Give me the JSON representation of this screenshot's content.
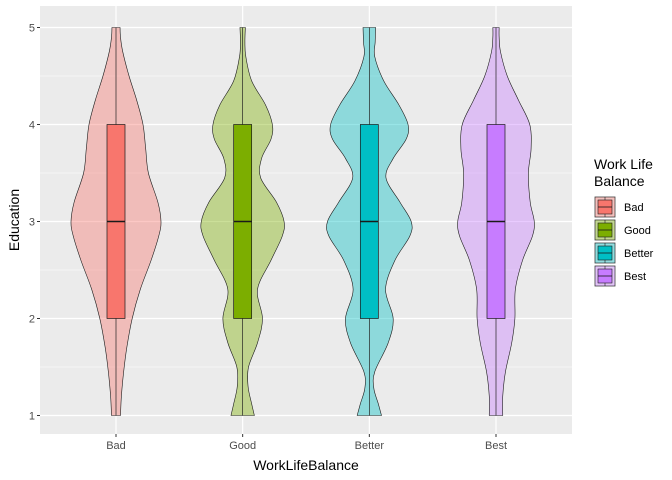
{
  "chart_data": {
    "type": "violin",
    "title": "",
    "xlabel": "WorkLifeBalance",
    "ylabel": "Education",
    "ylim": [
      1,
      5
    ],
    "yticks": [
      "1",
      "2",
      "3",
      "4",
      "5"
    ],
    "grid": true,
    "legend_position": "right",
    "legend_title": [
      "Work Life",
      "Balance"
    ],
    "categories": [
      "Bad",
      "Good",
      "Better",
      "Best"
    ],
    "series": [
      {
        "name": "Bad",
        "color": "#F8766D",
        "box": {
          "min": 1,
          "q1": 2,
          "median": 3,
          "q3": 4,
          "max": 5
        },
        "density_width": [
          [
            1.0,
            0.1
          ],
          [
            1.2,
            0.12
          ],
          [
            1.45,
            0.17
          ],
          [
            1.7,
            0.24
          ],
          [
            2.0,
            0.36
          ],
          [
            2.3,
            0.54
          ],
          [
            2.6,
            0.78
          ],
          [
            2.85,
            0.95
          ],
          [
            3.0,
            1.0
          ],
          [
            3.2,
            0.93
          ],
          [
            3.5,
            0.72
          ],
          [
            3.75,
            0.66
          ],
          [
            4.0,
            0.6
          ],
          [
            4.25,
            0.46
          ],
          [
            4.5,
            0.29
          ],
          [
            4.75,
            0.15
          ],
          [
            4.9,
            0.1
          ],
          [
            5.0,
            0.09
          ]
        ]
      },
      {
        "name": "Good",
        "color": "#7CAE00",
        "box": {
          "min": 1,
          "q1": 2,
          "median": 3,
          "q3": 4,
          "max": 5
        },
        "density_width": [
          [
            1.0,
            0.26
          ],
          [
            1.12,
            0.2
          ],
          [
            1.3,
            0.12
          ],
          [
            1.5,
            0.13
          ],
          [
            1.75,
            0.33
          ],
          [
            2.0,
            0.44
          ],
          [
            2.3,
            0.33
          ],
          [
            2.6,
            0.63
          ],
          [
            2.85,
            0.88
          ],
          [
            3.0,
            0.92
          ],
          [
            3.2,
            0.75
          ],
          [
            3.45,
            0.4
          ],
          [
            3.65,
            0.42
          ],
          [
            3.85,
            0.63
          ],
          [
            4.0,
            0.66
          ],
          [
            4.2,
            0.51
          ],
          [
            4.45,
            0.2
          ],
          [
            4.7,
            0.07
          ],
          [
            4.85,
            0.05
          ],
          [
            5.0,
            0.06
          ]
        ]
      },
      {
        "name": "Better",
        "color": "#00BFC4",
        "box": {
          "min": 1,
          "q1": 2,
          "median": 3,
          "q3": 4,
          "max": 5
        },
        "density_width": [
          [
            1.0,
            0.27
          ],
          [
            1.12,
            0.2
          ],
          [
            1.28,
            0.1
          ],
          [
            1.45,
            0.12
          ],
          [
            1.75,
            0.42
          ],
          [
            2.0,
            0.53
          ],
          [
            2.3,
            0.36
          ],
          [
            2.6,
            0.57
          ],
          [
            2.85,
            0.9
          ],
          [
            3.0,
            0.93
          ],
          [
            3.2,
            0.68
          ],
          [
            3.45,
            0.37
          ],
          [
            3.65,
            0.53
          ],
          [
            3.85,
            0.82
          ],
          [
            4.0,
            0.86
          ],
          [
            4.2,
            0.66
          ],
          [
            4.45,
            0.32
          ],
          [
            4.7,
            0.12
          ],
          [
            4.85,
            0.13
          ],
          [
            5.0,
            0.14
          ]
        ]
      },
      {
        "name": "Best",
        "color": "#C77CFF",
        "box": {
          "min": 1,
          "q1": 2,
          "median": 3,
          "q3": 4,
          "max": 5
        },
        "density_width": [
          [
            1.0,
            0.15
          ],
          [
            1.2,
            0.15
          ],
          [
            1.45,
            0.21
          ],
          [
            1.75,
            0.35
          ],
          [
            2.0,
            0.42
          ],
          [
            2.3,
            0.43
          ],
          [
            2.6,
            0.59
          ],
          [
            2.85,
            0.81
          ],
          [
            3.0,
            0.85
          ],
          [
            3.2,
            0.76
          ],
          [
            3.5,
            0.72
          ],
          [
            3.75,
            0.78
          ],
          [
            4.0,
            0.75
          ],
          [
            4.25,
            0.5
          ],
          [
            4.5,
            0.25
          ],
          [
            4.75,
            0.1
          ],
          [
            4.9,
            0.07
          ],
          [
            5.0,
            0.07
          ]
        ]
      }
    ]
  }
}
